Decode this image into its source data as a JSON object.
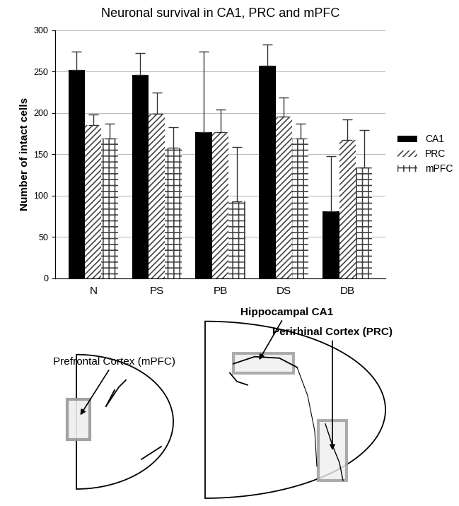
{
  "chart_data": {
    "type": "bar",
    "title": "Neuronal survival in CA1, PRC and mPFC",
    "y_label": "Number of intact cells",
    "categories": [
      "N",
      "PS",
      "PB",
      "DS",
      "DB"
    ],
    "series": [
      {
        "name": "CA1",
        "color": "#000000",
        "values": [
          252,
          246,
          177,
          257,
          81
        ],
        "errors": [
          22,
          27,
          97,
          26,
          67
        ]
      },
      {
        "name": "PRC",
        "color": "#ffffff",
        "values": [
          185,
          199,
          177,
          196,
          167
        ],
        "errors": [
          13,
          26,
          27,
          23,
          25
        ]
      },
      {
        "name": "mPFC",
        "color": "#ffffff",
        "values": [
          169,
          158,
          93,
          169,
          134
        ],
        "errors": [
          18,
          25,
          66,
          18,
          45
        ]
      }
    ],
    "ylim": [
      0,
      300
    ],
    "yticks": [
      0,
      50,
      100,
      150,
      200,
      250,
      300
    ],
    "grid": true,
    "legend": "right"
  },
  "diagram": {
    "labels": [
      "Prefrontal Cortex (mPFC)",
      "Hippocampal CA1",
      "Perirhinal Cortex (PRC)"
    ]
  }
}
